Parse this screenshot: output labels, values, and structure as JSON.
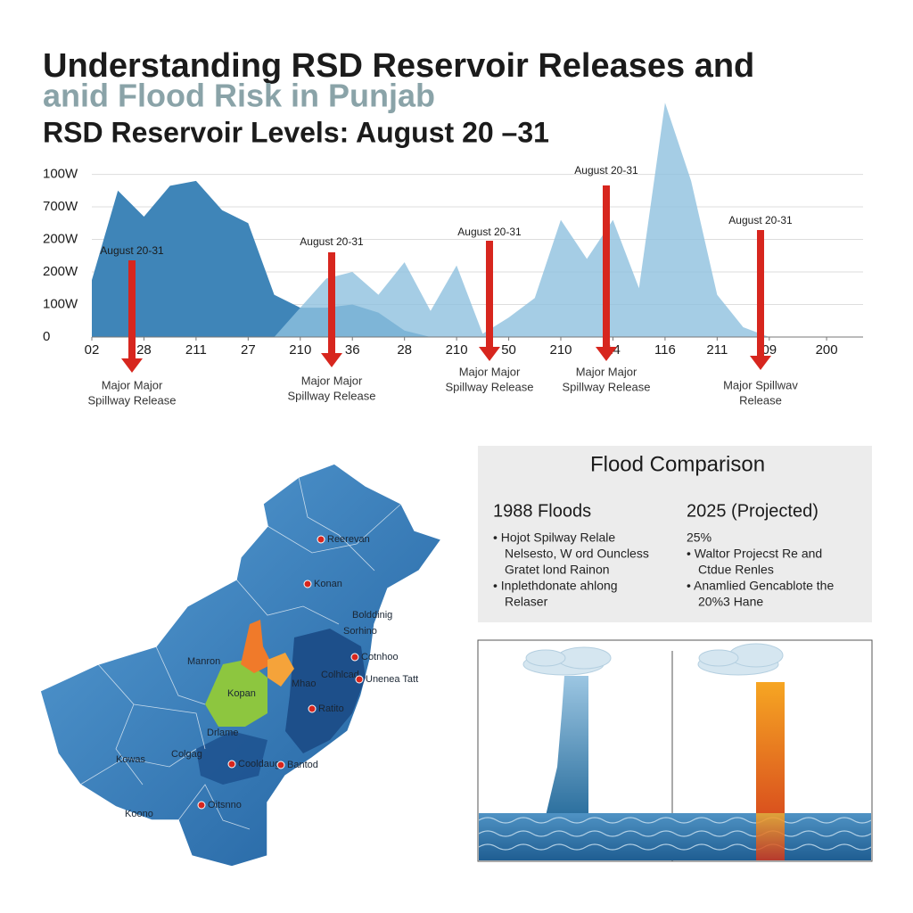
{
  "chart_data": {
    "type": "area",
    "title": "Understanding RSD Reservoir Releases and",
    "title_line2": "anid Flood Risk in Punjab",
    "subtitle": "RSD Reservoir Levels: August 20 –31",
    "xlim": [
      0,
      14.8
    ],
    "xticks": [
      {
        "value": 0,
        "label": "02"
      },
      {
        "value": 1,
        "label": "28"
      },
      {
        "value": 2,
        "label": "211"
      },
      {
        "value": 3,
        "label": "27"
      },
      {
        "value": 4,
        "label": "210"
      },
      {
        "value": 5,
        "label": "36"
      },
      {
        "value": 6,
        "label": "28"
      },
      {
        "value": 7,
        "label": "210"
      },
      {
        "value": 8,
        "label": "50"
      },
      {
        "value": 9,
        "label": "210"
      },
      {
        "value": 10,
        "label": "14"
      },
      {
        "value": 11,
        "label": "116"
      },
      {
        "value": 12,
        "label": "211"
      },
      {
        "value": 13,
        "label": "09"
      },
      {
        "value": 14.1,
        "label": "200"
      }
    ],
    "ylim": [
      0,
      7.4
    ],
    "yticks": [
      {
        "value": 0,
        "label": "0"
      },
      {
        "value": 1,
        "label": "100W"
      },
      {
        "value": 2,
        "label": "200W"
      },
      {
        "value": 3,
        "label": "200W"
      },
      {
        "value": 4,
        "label": "700W"
      },
      {
        "value": 5,
        "label": "100W"
      }
    ],
    "grid": true,
    "series": [
      {
        "name": "Reservoir A",
        "color": "#3f85b8",
        "x": [
          0,
          0.5,
          1,
          1.5,
          2,
          2.5,
          3,
          3.5,
          4,
          4.5,
          5,
          5.5,
          6,
          6.5,
          7
        ],
        "values": [
          1.75,
          4.5,
          3.7,
          4.65,
          4.8,
          3.9,
          3.5,
          1.3,
          0.9,
          0.9,
          1.0,
          0.75,
          0.2,
          0,
          0
        ]
      },
      {
        "name": "Reservoir B",
        "color": "#8fc0df",
        "x": [
          3.5,
          4,
          4.5,
          5,
          5.5,
          6,
          6.5,
          7,
          7.5,
          8,
          8.5,
          9,
          9.5,
          10,
          10.5,
          11,
          11.5,
          12,
          12.5,
          13,
          13.5,
          14,
          14.8
        ],
        "values": [
          0,
          0.9,
          1.8,
          2.0,
          1.3,
          2.3,
          0.8,
          2.2,
          0.1,
          0.6,
          1.2,
          3.6,
          2.4,
          3.6,
          1.5,
          7.2,
          4.8,
          1.3,
          0.3,
          0,
          0,
          0,
          0
        ]
      }
    ],
    "annotations": [
      {
        "label": "August 20-31",
        "note": [
          "Major Major",
          "Spillway Release"
        ]
      },
      {
        "label": "August 20-31",
        "note": [
          "Major Major",
          "Spillway Release"
        ]
      },
      {
        "label": "August 20-31",
        "note": [
          "Major Major",
          "Spillway Release"
        ]
      },
      {
        "label": "August 20-31",
        "note": [
          "Major Major",
          "Spillway Release"
        ]
      },
      {
        "label": "August 20-31",
        "note": [
          "Major Spillwav",
          "Release"
        ]
      }
    ]
  },
  "map": {
    "labels": [
      "Reerevan",
      "Konan",
      "Bolddinig",
      "Sorhino",
      "Manron",
      "Kopan",
      "Cotnhoo",
      "Mhao",
      "Colhlcad",
      "Unenea Tatt",
      "Ratito",
      "Drlame",
      "Kowas",
      "Colgag",
      "Cooldaug",
      "Bantod",
      "Oitsnno",
      "Koono"
    ]
  },
  "comparison": {
    "title": "Flood Comparison",
    "columns": [
      {
        "heading": "1988 Floods",
        "lines": [
          "•  Hojot Spilway Relale",
          "Nelsesto, W ord Ouncless",
          "Gratet lond Rainon",
          "•  Inplethdonate ahlong",
          "Relaser"
        ]
      },
      {
        "heading": "2025 (Projected)",
        "lines": [
          "25%",
          "•  Waltor Projecst Re and",
          "Ctdue Renles",
          "•  Anamlied Gencablote the",
          "20%3 Hane"
        ]
      }
    ]
  }
}
